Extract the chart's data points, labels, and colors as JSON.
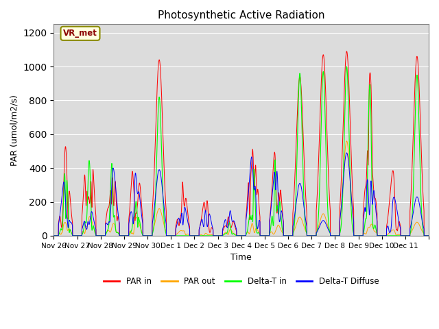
{
  "title": "Photosynthetic Active Radiation",
  "xlabel": "Time",
  "ylabel": "PAR (umol/m2/s)",
  "ylim": [
    0,
    1250
  ],
  "yticks": [
    0,
    200,
    400,
    600,
    800,
    1000,
    1200
  ],
  "annotation_text": "VR_met",
  "legend_entries": [
    "PAR in",
    "PAR out",
    "Delta-T in",
    "Delta-T Diffuse"
  ],
  "line_colors": [
    "red",
    "orange",
    "lime",
    "blue"
  ],
  "background_color": "#dcdcdc",
  "x_tick_labels": [
    "Nov 26",
    "Nov 27",
    "Nov 28",
    "Nov 29",
    "Nov 30",
    "Dec 1",
    "Dec 2",
    "Dec 3",
    "Dec 4",
    "Dec 5",
    "Dec 6",
    "Dec 7",
    "Dec 8",
    "Dec 9",
    "Dec 10",
    "Dec 11"
  ]
}
